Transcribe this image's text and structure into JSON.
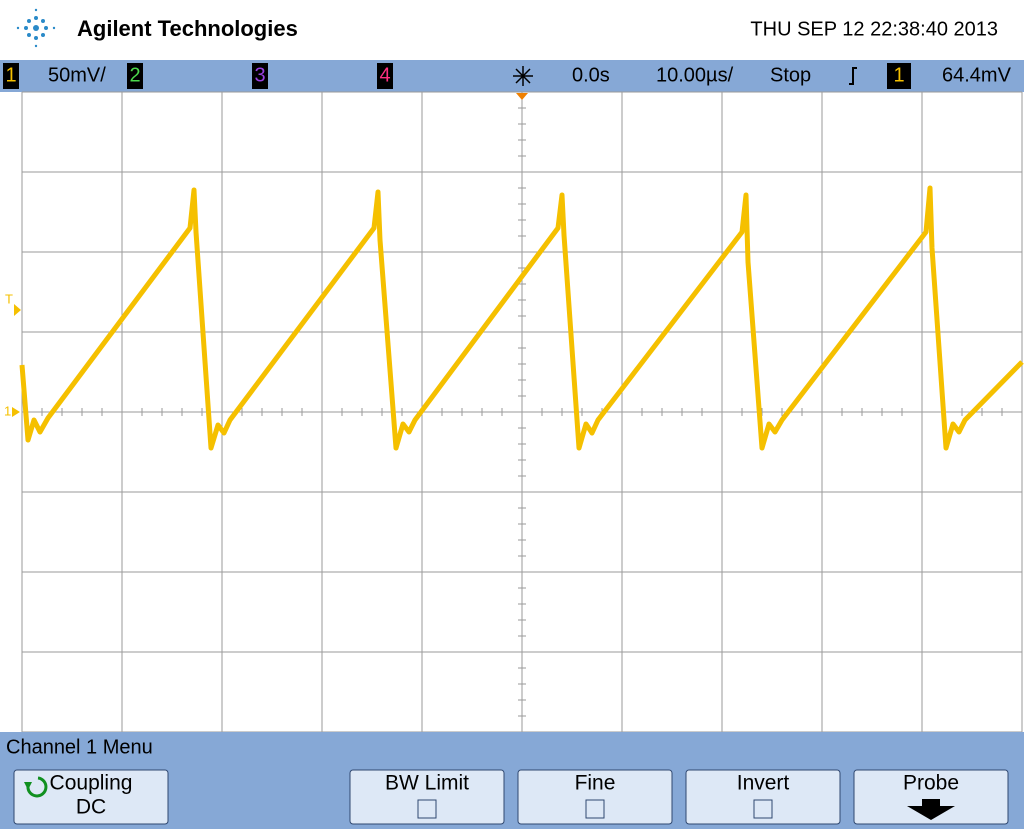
{
  "header": {
    "brand": "Agilent Technologies",
    "datetime": "THU SEP 12 22:38:40 2013"
  },
  "status_bar": {
    "ch1": "1",
    "ch1_scale": "50mV/",
    "ch2": "2",
    "ch3": "3",
    "ch4": "4",
    "time_delay": "0.0s",
    "time_scale": "10.00µs/",
    "run_state": "Stop",
    "trigger_source": "1",
    "trigger_level": "64.4mV"
  },
  "markers": {
    "trigger": "T",
    "ground": "1"
  },
  "menu": {
    "title": "Channel 1 Menu",
    "softkeys": [
      {
        "label": "Coupling",
        "value": "DC"
      },
      {
        "label": "BW Limit"
      },
      {
        "label": "Fine"
      },
      {
        "label": "Invert"
      },
      {
        "label": "Probe"
      }
    ]
  }
}
